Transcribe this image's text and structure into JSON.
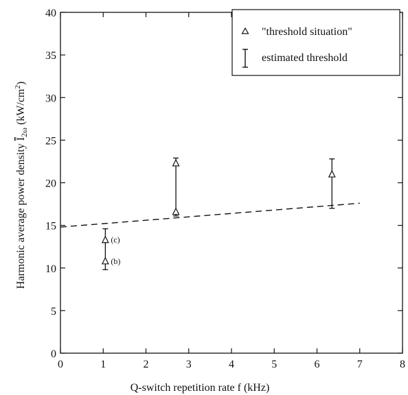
{
  "chart_data": {
    "type": "scatter",
    "xlabel": "Q-switch repetition rate f (kHz)",
    "ylabel": {
      "prefix": "Harmonic average power density ",
      "symbol": "I",
      "subscript": "2ω",
      "unit_open": " (kW/cm",
      "unit_sup": "2",
      "unit_close": ")"
    },
    "xlim": [
      0,
      8
    ],
    "ylim": [
      0,
      40
    ],
    "x_ticks": [
      "0",
      "1",
      "2",
      "3",
      "4",
      "5",
      "6",
      "7",
      "8"
    ],
    "y_ticks": [
      "0",
      "5",
      "10",
      "15",
      "20",
      "25",
      "30",
      "35",
      "40"
    ],
    "grid": false,
    "legend": {
      "position": "top-right",
      "entries": [
        {
          "marker": "triangle",
          "label": "\"threshold situation\""
        },
        {
          "marker": "errorbar",
          "label": "estimated threshold"
        }
      ]
    },
    "series": [
      {
        "name": "\"threshold situation\"",
        "points": [
          {
            "x": 1.05,
            "y": 13.3,
            "label": "(c)"
          },
          {
            "x": 1.05,
            "y": 10.8,
            "label": "(b)"
          },
          {
            "x": 2.7,
            "y": 22.3,
            "label": ""
          },
          {
            "x": 2.7,
            "y": 16.6,
            "label": ""
          },
          {
            "x": 6.35,
            "y": 21.0,
            "label": ""
          }
        ]
      },
      {
        "name": "estimated threshold",
        "errorbars": [
          {
            "x": 1.05,
            "low": 9.8,
            "high": 14.6
          },
          {
            "x": 2.7,
            "low": 16.1,
            "high": 22.9
          },
          {
            "x": 6.35,
            "low": 17.0,
            "high": 22.8
          }
        ]
      },
      {
        "style": "dashed-line",
        "x": [
          0.0,
          7.0
        ],
        "y": [
          14.8,
          17.6
        ]
      }
    ]
  }
}
